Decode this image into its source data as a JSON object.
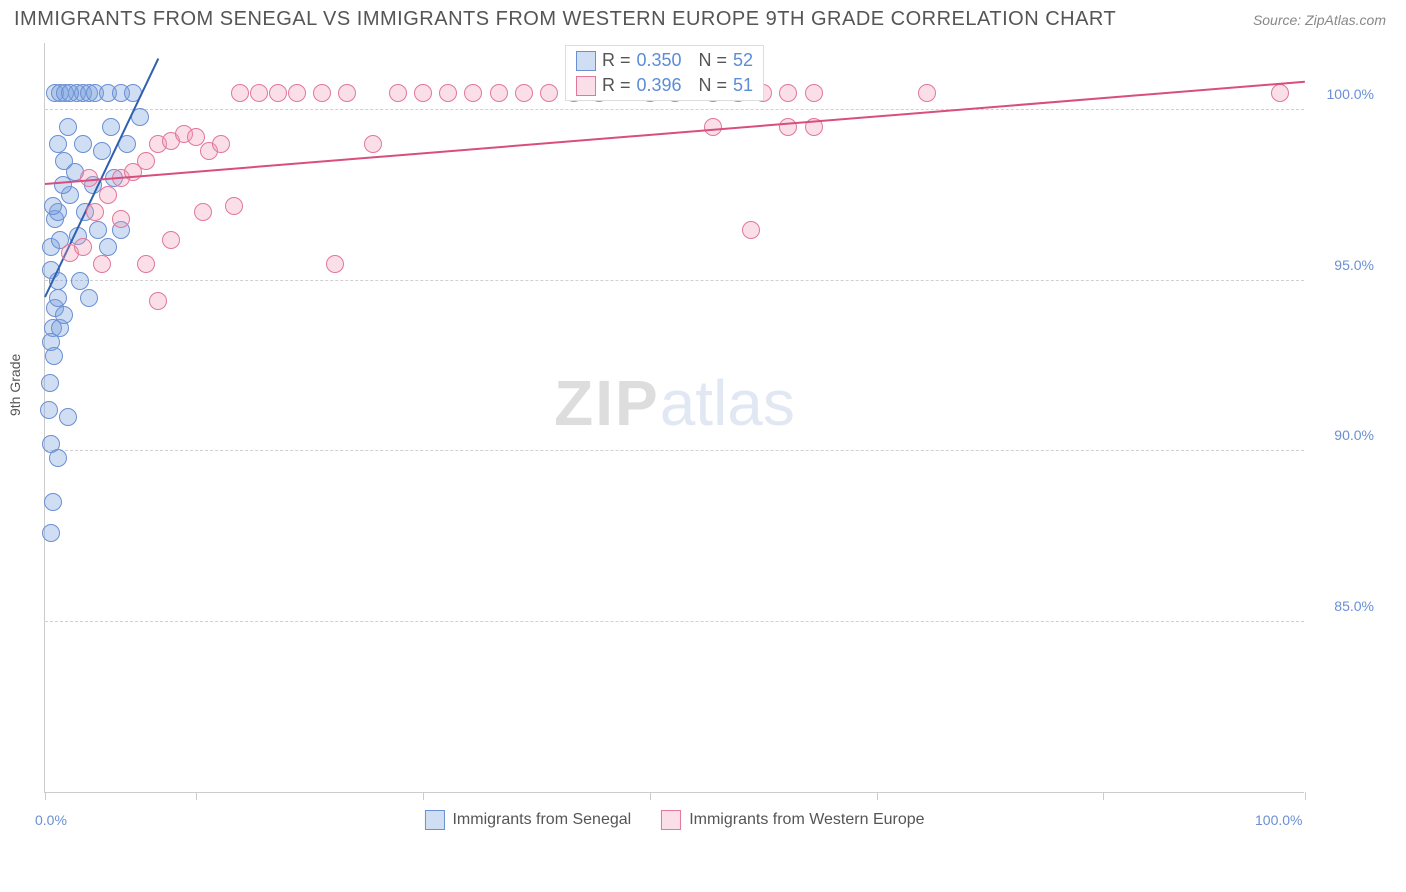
{
  "title": "IMMIGRANTS FROM SENEGAL VS IMMIGRANTS FROM WESTERN EUROPE 9TH GRADE CORRELATION CHART",
  "source": "Source: ZipAtlas.com",
  "y_axis_title": "9th Grade",
  "watermark": {
    "part1": "ZIP",
    "part2": "atlas"
  },
  "chart": {
    "type": "scatter",
    "xlim": [
      0,
      100
    ],
    "ylim": [
      80,
      102
    ],
    "x_ticks": [
      0,
      12,
      30,
      48,
      66,
      84,
      100
    ],
    "x_tick_labels": {
      "0": "0.0%",
      "100": "100.0%"
    },
    "y_ticks": [
      85,
      90,
      95,
      100
    ],
    "y_tick_labels": {
      "85": "85.0%",
      "90": "90.0%",
      "95": "95.0%",
      "100": "100.0%"
    },
    "background_color": "#ffffff",
    "grid_color": "#d0d0d0",
    "marker_radius": 9,
    "marker_stroke_width": 1.5,
    "series": [
      {
        "name": "Immigrants from Senegal",
        "fill": "rgba(120,160,220,0.35)",
        "stroke": "#6a8fd4",
        "trend_color": "#2f5fb0",
        "trend": {
          "x1": 0,
          "y1": 94.5,
          "x2": 9,
          "y2": 101.5
        },
        "points": [
          [
            0.5,
            95.3
          ],
          [
            0.5,
            96.0
          ],
          [
            0.8,
            96.8
          ],
          [
            1.0,
            97.0
          ],
          [
            1.2,
            96.2
          ],
          [
            1.0,
            95.0
          ],
          [
            0.8,
            94.2
          ],
          [
            0.6,
            93.6
          ],
          [
            0.5,
            93.2
          ],
          [
            0.7,
            92.8
          ],
          [
            1.2,
            93.6
          ],
          [
            1.5,
            94.0
          ],
          [
            0.4,
            92.0
          ],
          [
            0.3,
            91.2
          ],
          [
            0.5,
            90.2
          ],
          [
            1.0,
            89.8
          ],
          [
            0.6,
            88.5
          ],
          [
            0.5,
            87.6
          ],
          [
            1.8,
            91.0
          ],
          [
            2.5,
            100.5
          ],
          [
            3.0,
            100.5
          ],
          [
            3.5,
            100.5
          ],
          [
            4.0,
            100.5
          ],
          [
            5.0,
            100.5
          ],
          [
            6.0,
            100.5
          ],
          [
            5.2,
            99.5
          ],
          [
            4.5,
            98.8
          ],
          [
            3.8,
            97.8
          ],
          [
            3.2,
            97.0
          ],
          [
            2.6,
            96.3
          ],
          [
            2.0,
            97.5
          ],
          [
            2.4,
            98.2
          ],
          [
            1.5,
            98.5
          ],
          [
            1.0,
            99.0
          ],
          [
            1.8,
            99.5
          ],
          [
            0.8,
            100.5
          ],
          [
            1.2,
            100.5
          ],
          [
            1.6,
            100.5
          ],
          [
            2.0,
            100.5
          ],
          [
            4.2,
            96.5
          ],
          [
            5.0,
            96.0
          ],
          [
            6.0,
            96.5
          ],
          [
            5.5,
            98.0
          ],
          [
            6.5,
            99.0
          ],
          [
            7.0,
            100.5
          ],
          [
            7.5,
            99.8
          ],
          [
            2.8,
            95.0
          ],
          [
            3.5,
            94.5
          ],
          [
            1.0,
            94.5
          ],
          [
            0.6,
            97.2
          ],
          [
            1.4,
            97.8
          ],
          [
            3.0,
            99.0
          ]
        ]
      },
      {
        "name": "Immigrants from Western Europe",
        "fill": "rgba(240,150,180,0.30)",
        "stroke": "#e27799",
        "trend_color": "#d84e7e",
        "trend": {
          "x1": 0,
          "y1": 97.8,
          "x2": 100,
          "y2": 100.8
        },
        "points": [
          [
            2.0,
            95.8
          ],
          [
            3.0,
            96.0
          ],
          [
            4.0,
            97.0
          ],
          [
            5.0,
            97.5
          ],
          [
            6.0,
            98.0
          ],
          [
            7.0,
            98.2
          ],
          [
            8.0,
            98.5
          ],
          [
            9.0,
            99.0
          ],
          [
            10.0,
            99.1
          ],
          [
            11.0,
            99.3
          ],
          [
            12.0,
            99.2
          ],
          [
            13.0,
            98.8
          ],
          [
            14.0,
            99.0
          ],
          [
            9.0,
            94.4
          ],
          [
            12.5,
            97.0
          ],
          [
            15.0,
            97.2
          ],
          [
            15.5,
            100.5
          ],
          [
            17.0,
            100.5
          ],
          [
            18.5,
            100.5
          ],
          [
            20.0,
            100.5
          ],
          [
            22.0,
            100.5
          ],
          [
            24.0,
            100.5
          ],
          [
            26.0,
            99.0
          ],
          [
            28.0,
            100.5
          ],
          [
            30.0,
            100.5
          ],
          [
            32.0,
            100.5
          ],
          [
            34.0,
            100.5
          ],
          [
            36.0,
            100.5
          ],
          [
            38.0,
            100.5
          ],
          [
            40.0,
            100.5
          ],
          [
            42.0,
            100.5
          ],
          [
            44.0,
            100.5
          ],
          [
            23.0,
            95.5
          ],
          [
            56.0,
            96.5
          ],
          [
            48.0,
            100.5
          ],
          [
            50.0,
            100.5
          ],
          [
            53.0,
            100.5
          ],
          [
            55.0,
            100.5
          ],
          [
            57.0,
            100.5
          ],
          [
            59.0,
            100.5
          ],
          [
            61.0,
            100.5
          ],
          [
            70.0,
            100.5
          ],
          [
            59.0,
            99.5
          ],
          [
            61.0,
            99.5
          ],
          [
            53.0,
            99.5
          ],
          [
            8.0,
            95.5
          ],
          [
            10.0,
            96.2
          ],
          [
            6.0,
            96.8
          ],
          [
            4.5,
            95.5
          ],
          [
            3.5,
            98.0
          ],
          [
            98.0,
            100.5
          ]
        ]
      }
    ]
  },
  "stats_box": {
    "rows": [
      {
        "swatch_fill": "rgba(120,160,220,0.35)",
        "swatch_stroke": "#6a8fd4",
        "r_label": "R =",
        "r": "0.350",
        "n_label": "N =",
        "n": "52"
      },
      {
        "swatch_fill": "rgba(240,150,180,0.30)",
        "swatch_stroke": "#e27799",
        "r_label": "R =",
        "r": "0.396",
        "n_label": "N =",
        "n": "51"
      }
    ]
  },
  "bottom_legend": [
    {
      "swatch_fill": "rgba(120,160,220,0.35)",
      "swatch_stroke": "#6a8fd4",
      "label": "Immigrants from Senegal"
    },
    {
      "swatch_fill": "rgba(240,150,180,0.30)",
      "swatch_stroke": "#e27799",
      "label": "Immigrants from Western Europe"
    }
  ]
}
